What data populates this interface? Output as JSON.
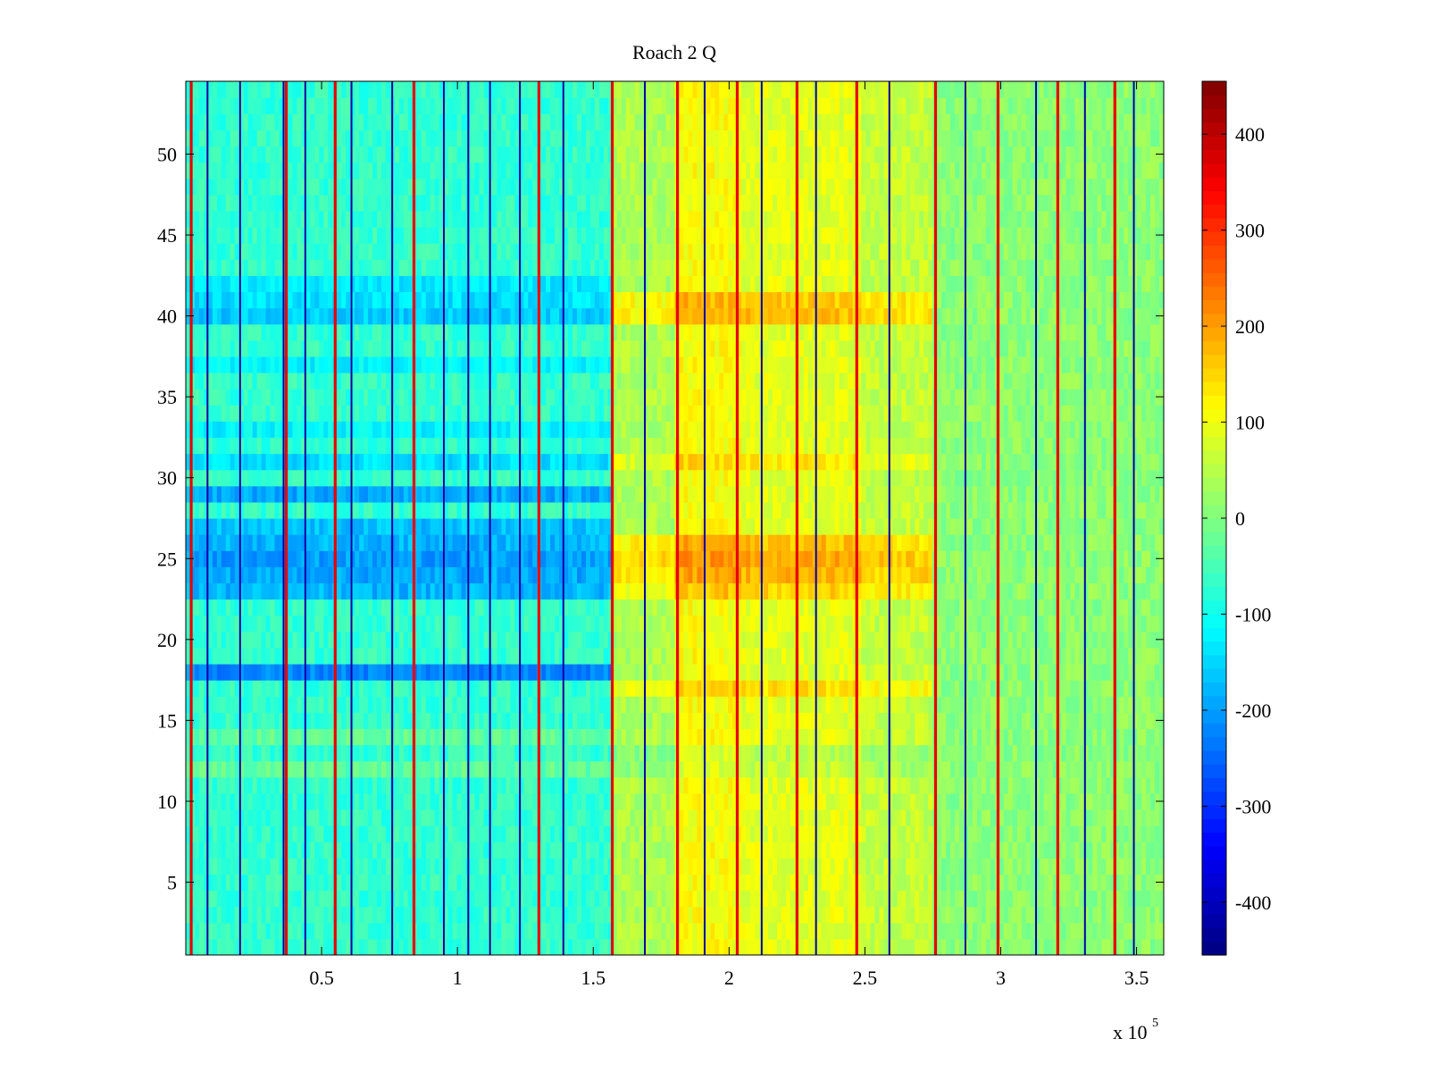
{
  "chart_data": [
    {
      "type": "heatmap",
      "title": "Roach 2 Q",
      "xlabel": "",
      "ylabel": "",
      "x_exponent_label": "x 10",
      "x_exponent_power": "5",
      "xlim": [
        0,
        360000
      ],
      "ylim": [
        0.5,
        54.5
      ],
      "y_rows": 54,
      "x_ticks": [
        {
          "value": 50000,
          "label": "0.5"
        },
        {
          "value": 100000,
          "label": "1"
        },
        {
          "value": 150000,
          "label": "1.5"
        },
        {
          "value": 200000,
          "label": "2"
        },
        {
          "value": 250000,
          "label": "2.5"
        },
        {
          "value": 300000,
          "label": "3"
        },
        {
          "value": 350000,
          "label": "3.5"
        }
      ],
      "y_ticks": [
        {
          "value": 5,
          "label": "5"
        },
        {
          "value": 10,
          "label": "10"
        },
        {
          "value": 15,
          "label": "15"
        },
        {
          "value": 20,
          "label": "20"
        },
        {
          "value": 25,
          "label": "25"
        },
        {
          "value": 30,
          "label": "30"
        },
        {
          "value": 35,
          "label": "35"
        },
        {
          "value": 40,
          "label": "40"
        },
        {
          "value": 45,
          "label": "45"
        },
        {
          "value": 50,
          "label": "50"
        }
      ],
      "colormap": "jet",
      "clim": [
        -455,
        455
      ],
      "grid": false,
      "colorbar_position": "right",
      "colorbar_ticks": [
        {
          "value": 400,
          "label": "400"
        },
        {
          "value": 300,
          "label": "300"
        },
        {
          "value": 200,
          "label": "200"
        },
        {
          "value": 100,
          "label": "100"
        },
        {
          "value": 0,
          "label": "0"
        },
        {
          "value": -100,
          "label": "-100"
        },
        {
          "value": -200,
          "label": "-200"
        },
        {
          "value": -300,
          "label": "-300"
        },
        {
          "value": -400,
          "label": "-400"
        }
      ],
      "segments": [
        {
          "x_start": 0,
          "x_end": 157000,
          "base_value": -70
        },
        {
          "x_start": 157000,
          "x_end": 180000,
          "base_value": 40
        },
        {
          "x_start": 180000,
          "x_end": 205000,
          "base_value": 110
        },
        {
          "x_start": 205000,
          "x_end": 248000,
          "base_value": 90
        },
        {
          "x_start": 248000,
          "x_end": 275000,
          "base_value": 60
        },
        {
          "x_start": 275000,
          "x_end": 360000,
          "base_value": 10
        }
      ],
      "row_offsets_left": [
        {
          "row": 18,
          "value": -150
        },
        {
          "row": 23,
          "value": -110
        },
        {
          "row": 24,
          "value": -120
        },
        {
          "row": 25,
          "value": -130
        },
        {
          "row": 26,
          "value": -110
        },
        {
          "row": 27,
          "value": -100
        },
        {
          "row": 29,
          "value": -120
        },
        {
          "row": 31,
          "value": -70
        },
        {
          "row": 33,
          "value": -50
        },
        {
          "row": 37,
          "value": -50
        },
        {
          "row": 40,
          "value": -90
        },
        {
          "row": 41,
          "value": -70
        },
        {
          "row": 42,
          "value": -60
        },
        {
          "row": 12,
          "value": 40
        },
        {
          "row": 14,
          "value": 40
        }
      ],
      "row_offsets_right": [
        {
          "row": 24,
          "value": 90
        },
        {
          "row": 25,
          "value": 100
        },
        {
          "row": 26,
          "value": 80
        },
        {
          "row": 23,
          "value": 60
        },
        {
          "row": 40,
          "value": 80
        },
        {
          "row": 41,
          "value": 70
        },
        {
          "row": 31,
          "value": 40
        },
        {
          "row": 17,
          "value": 50
        },
        {
          "row": 13,
          "value": -40
        },
        {
          "row": 12,
          "value": -30
        }
      ],
      "high_value_lines": [
        2000,
        37000,
        55000,
        84000,
        130000,
        157000,
        181000,
        203000,
        225000,
        247000,
        276000,
        299000,
        321000,
        342000
      ],
      "low_value_lines": [
        8000,
        20000,
        36000,
        44000,
        61000,
        76000,
        95000,
        104000,
        112000,
        123000,
        139000,
        169000,
        191000,
        212000,
        232000,
        259000,
        287000,
        313000,
        331000,
        349000
      ]
    }
  ]
}
